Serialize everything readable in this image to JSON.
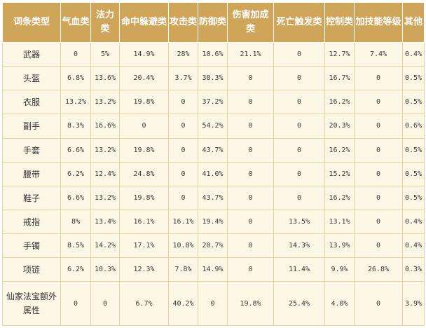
{
  "table": {
    "headers": [
      "词条类型",
      "气血类",
      "法力类",
      "命中躲避类",
      "攻击类",
      "防御类",
      "伤害加成类",
      "死亡触发类",
      "控制类",
      "加技能等级",
      "其他"
    ],
    "rows": [
      {
        "name": "武器",
        "values": [
          "0",
          "5%",
          "14.9%",
          "28%",
          "10.6%",
          "21.1%",
          "0",
          "12.7%",
          "7.4%",
          "0.4%"
        ]
      },
      {
        "name": "头盔",
        "values": [
          "6.8%",
          "13.6%",
          "20.4%",
          "3.7%",
          "38.3%",
          "0",
          "0",
          "16.7%",
          "0",
          "0.5%"
        ]
      },
      {
        "name": "衣服",
        "values": [
          "13.2%",
          "13.2%",
          "19.8%",
          "0",
          "37.2%",
          "0",
          "0",
          "16.2%",
          "0",
          "0.5%"
        ]
      },
      {
        "name": "副手",
        "values": [
          "8.3%",
          "16.6%",
          "0",
          "0",
          "54.2%",
          "0",
          "0",
          "20.3%",
          "0",
          "0.6%"
        ]
      },
      {
        "name": "手套",
        "values": [
          "6.6%",
          "13.2%",
          "19.8%",
          "0",
          "43.7%",
          "0",
          "0",
          "16.2%",
          "0",
          "0.5%"
        ]
      },
      {
        "name": "腰带",
        "values": [
          "6.2%",
          "12.4%",
          "24.8%",
          "0",
          "41.0%",
          "0",
          "0",
          "15.2%",
          "0",
          "0.5%"
        ]
      },
      {
        "name": "鞋子",
        "values": [
          "6.6%",
          "13.2%",
          "19.8%",
          "0",
          "43.7%",
          "0",
          "0",
          "16.2%",
          "0",
          "0.5%"
        ]
      },
      {
        "name": "戒指",
        "values": [
          "8%",
          "13.4%",
          "16.1%",
          "16.1%",
          "19.4%",
          "0",
          "13.5%",
          "13.1%",
          "0",
          "0.4%"
        ]
      },
      {
        "name": "手镯",
        "values": [
          "8.5%",
          "14.2%",
          "17.1%",
          "10.8%",
          "20.7%",
          "0",
          "14.3%",
          "13.9%",
          "0",
          "0.4%"
        ]
      },
      {
        "name": "项链",
        "values": [
          "6.2%",
          "10.3%",
          "12.3%",
          "7.8%",
          "14.9%",
          "0",
          "11.4%",
          "9.9%",
          "26.8%",
          "0.3%"
        ]
      },
      {
        "name": "仙家法宝额外属性",
        "values": [
          "0",
          "0",
          "6.7%",
          "40.2%",
          "0",
          "19.8%",
          "25.4%",
          "4.0%",
          "0",
          "3.9%"
        ]
      }
    ]
  },
  "colors": {
    "header_bg": "#cfa559",
    "header_text": "#ffffff",
    "cell_bg": "#fbf7e4",
    "cell_border": "#e3d3a2"
  }
}
